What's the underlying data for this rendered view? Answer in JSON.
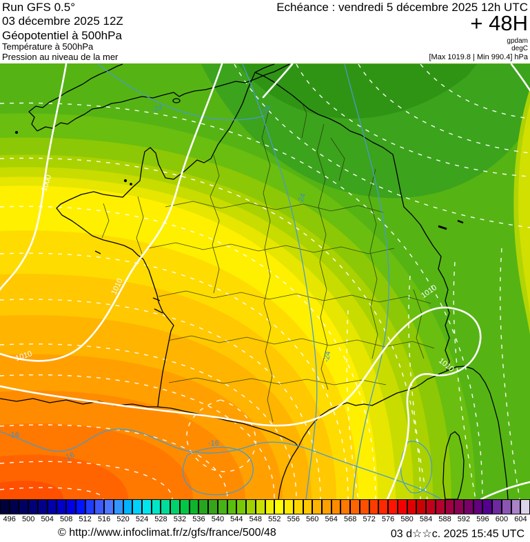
{
  "header": {
    "run": "Run GFS 0.5°",
    "run_date": "03 décembre 2025 12Z",
    "field_geopotential": "Géopotentiel à 500hPa",
    "field_temperature": "Température à 500hPa",
    "field_pressure": "Pression au niveau de la mer",
    "validity": "Echéance : vendredi 5 décembre 2025 12h UTC",
    "step": "+ 48H",
    "unit_geopotential": "gpdam",
    "unit_temperature": "degC",
    "extremes": "[Max 1019.8 | Min 990.4] hPa"
  },
  "map": {
    "isobar_labels": [
      {
        "text": "1000"
      },
      {
        "text": "1010"
      },
      {
        "text": "1010"
      },
      {
        "text": "1010"
      },
      {
        "text": "1010"
      }
    ],
    "temp_labels": [
      {
        "text": "-24"
      },
      {
        "text": "-24"
      },
      {
        "text": "-24"
      },
      {
        "text": "-24"
      },
      {
        "text": "-16"
      },
      {
        "text": "-16"
      },
      {
        "text": "-16"
      }
    ],
    "colors": {
      "isobar": "#ffffff",
      "isotherm": "#4a9ac8",
      "coast": "#000000",
      "department": "#26380c",
      "pressure_label": "#ffffff",
      "temp_label": "#3d8fc0"
    },
    "bands": [
      "#55b414",
      "#3ca31c",
      "#2f9414",
      "#69be0f",
      "#8cc805",
      "#aad200",
      "#c8dc00",
      "#e6e600",
      "#fff000",
      "#ffdc00",
      "#ffc800",
      "#ffb400",
      "#ffa000",
      "#ff8c00",
      "#ff7800",
      "#ff6400",
      "#ff5000",
      "#c8dc00",
      "#e6e600",
      "#46aa0f"
    ]
  },
  "scale": {
    "labels": [
      "496",
      "500",
      "504",
      "508",
      "512",
      "516",
      "520",
      "524",
      "528",
      "532",
      "536",
      "540",
      "544",
      "548",
      "552",
      "556",
      "560",
      "564",
      "568",
      "572",
      "576",
      "580",
      "584",
      "588",
      "592",
      "596",
      "600",
      "604"
    ],
    "cells": [
      "#00003c",
      "#000050",
      "#000064",
      "#000078",
      "#00008c",
      "#0000aa",
      "#0000c8",
      "#0000e6",
      "#0014ff",
      "#1e3cff",
      "#3c5aff",
      "#4b78ff",
      "#3296ff",
      "#00b4ff",
      "#00d2ff",
      "#00e6f0",
      "#00e6c8",
      "#00dc9b",
      "#00d26e",
      "#00c846",
      "#0fb42d",
      "#28a51e",
      "#37a519",
      "#46b414",
      "#5abe0f",
      "#78c805",
      "#a0d200",
      "#c8e100",
      "#f0f000",
      "#ffff00",
      "#ffeb00",
      "#ffd700",
      "#ffc800",
      "#ffb400",
      "#ffa000",
      "#ff8c00",
      "#ff7800",
      "#ff6400",
      "#ff5000",
      "#ff3c00",
      "#ff2800",
      "#ff1400",
      "#f50000",
      "#e10000",
      "#cd0000",
      "#c30019",
      "#b4002d",
      "#a00041",
      "#8c0055",
      "#780069",
      "#64007d",
      "#550091",
      "#6e28a0",
      "#8c55b4",
      "#aa82c8",
      "#dcd2ea"
    ]
  },
  "footer": {
    "copyright": "© http://www.infoclimat.fr/z/gfs/france/500/48",
    "datetime": "03 d☆☆c. 2025 15:45 UTC"
  }
}
